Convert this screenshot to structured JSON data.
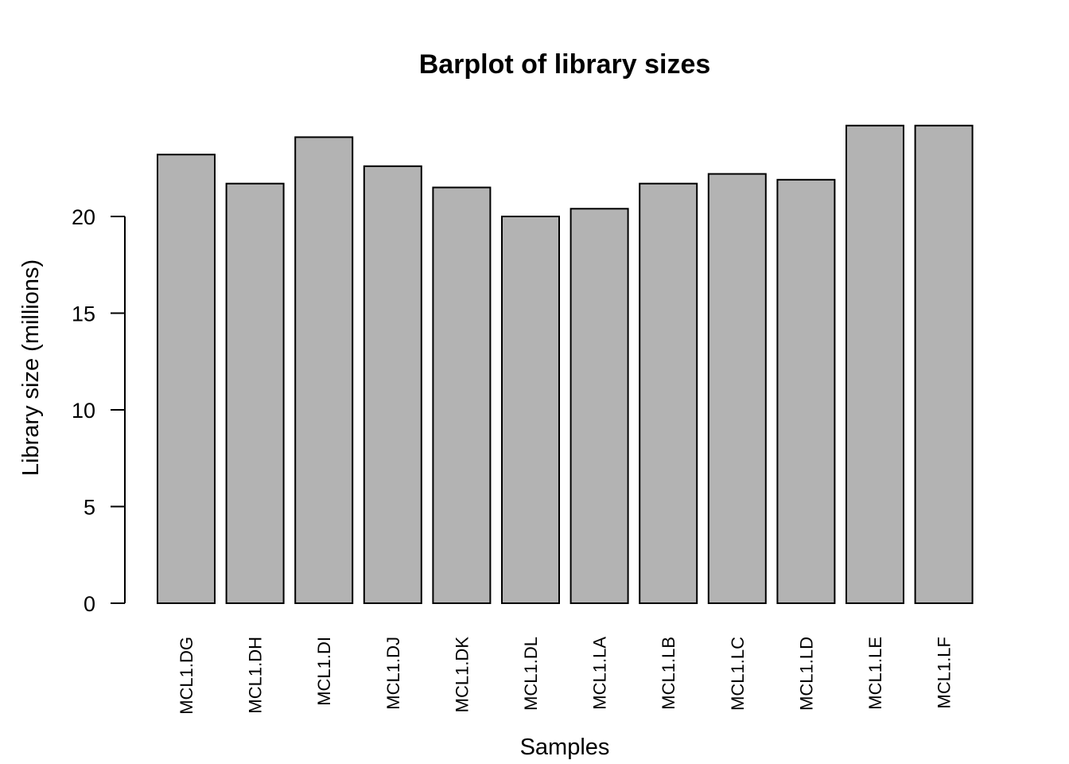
{
  "chart_data": {
    "type": "bar",
    "title": "Barplot of library sizes",
    "xlabel": "Samples",
    "ylabel": "Library size (millions)",
    "categories": [
      "MCL1.DG",
      "MCL1.DH",
      "MCL1.DI",
      "MCL1.DJ",
      "MCL1.DK",
      "MCL1.DL",
      "MCL1.LA",
      "MCL1.LB",
      "MCL1.LC",
      "MCL1.LD",
      "MCL1.LE",
      "MCL1.LF"
    ],
    "values": [
      23.2,
      21.7,
      24.1,
      22.6,
      21.5,
      20.0,
      20.4,
      21.7,
      22.2,
      21.9,
      24.7,
      24.7
    ],
    "yticks": [
      0,
      5,
      10,
      15,
      20
    ],
    "ytick_labels": [
      "0",
      "5",
      "10",
      "15",
      "20"
    ],
    "ylim": [
      0,
      25
    ],
    "grid": false,
    "bar_color": "#b3b3b3",
    "border_color": "#000000"
  }
}
